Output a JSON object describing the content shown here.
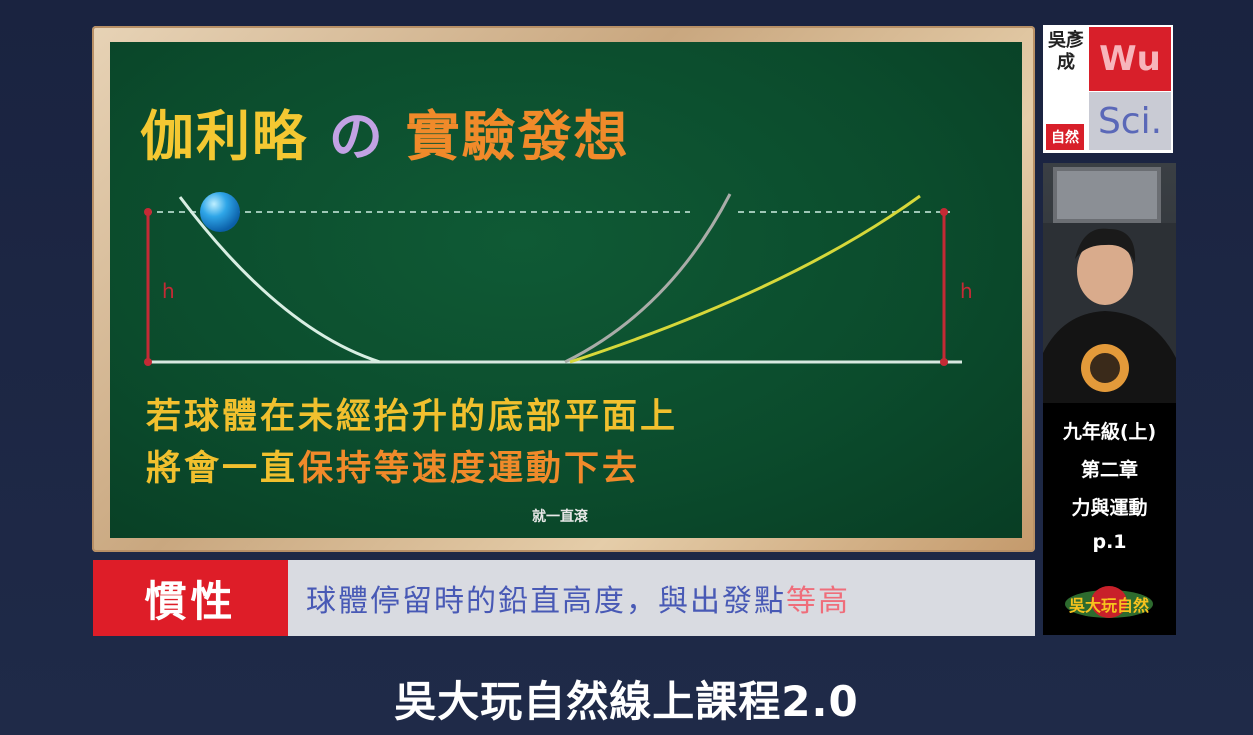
{
  "board": {
    "title_part1": "伽利略",
    "title_part2": "の",
    "title_part3": "實驗發想",
    "label_left": "h",
    "label_right": "h",
    "text_line1": "若球體在未經抬升的底部平面上",
    "text_line2_a": "將會一直",
    "text_line2_b": "保持等速度運動下去",
    "caption": "就一直滾"
  },
  "banner": {
    "tag": "慣性",
    "text_normal": "球體停留時的鉛直高度，與出發點",
    "text_highlight": "等高"
  },
  "logo": {
    "name": "吳彥成",
    "wu": "Wu",
    "sci": "Sci.",
    "tag": "自然"
  },
  "sidebar": {
    "grade": "九年級(上)",
    "chapter": "第二章",
    "topic": "力與運動",
    "page": "p.1",
    "brand": "吳大玩自然"
  },
  "footer": {
    "title": "吳大玩自然線上課程2.0"
  },
  "colors": {
    "board": "#0b4b2c",
    "yellow": "#f1c02e",
    "orange": "#f08a2a",
    "purple": "#c2a2e4",
    "red": "#de1d28",
    "banner_gray": "#d9dbe1",
    "blue_text": "#4859b5",
    "pink_text": "#ef6d7a"
  }
}
